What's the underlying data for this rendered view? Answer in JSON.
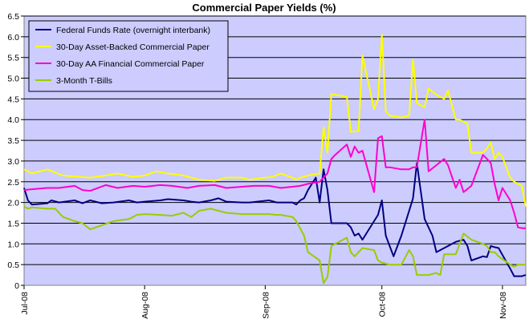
{
  "chart_data": {
    "type": "line",
    "title": "Commercial Paper Yields (%)",
    "xlabel": "",
    "ylabel": "",
    "ylim": [
      0,
      6.5
    ],
    "yticks": [
      "0",
      "0.5",
      "1.0",
      "1.5",
      "2.0",
      "2.5",
      "3.0",
      "3.5",
      "4.0",
      "4.5",
      "5.0",
      "5.5",
      "6.0",
      "6.5"
    ],
    "x_range": [
      "2008-07-01",
      "2008-11-07"
    ],
    "xticks": [
      {
        "label": "Jul-08",
        "date": "2008-07-01"
      },
      {
        "label": "Aug-08",
        "date": "2008-08-01"
      },
      {
        "label": "Sep-08",
        "date": "2008-09-01"
      },
      {
        "label": "Oct-08",
        "date": "2008-10-01"
      },
      {
        "label": "Nov-08",
        "date": "2008-11-01"
      }
    ],
    "grid": "horizontal",
    "legend_position": "top-left",
    "plot_background": "#ccccff",
    "series": [
      {
        "name": "Federal Funds Rate (overnight interbank)",
        "color": "#000080",
        "points": [
          [
            "2008-07-01",
            2.35
          ],
          [
            "2008-07-02",
            2.05
          ],
          [
            "2008-07-03",
            1.95
          ],
          [
            "2008-07-07",
            1.98
          ],
          [
            "2008-07-08",
            2.05
          ],
          [
            "2008-07-10",
            2.0
          ],
          [
            "2008-07-14",
            2.05
          ],
          [
            "2008-07-16",
            1.98
          ],
          [
            "2008-07-18",
            2.05
          ],
          [
            "2008-07-21",
            1.98
          ],
          [
            "2008-07-24",
            2.0
          ],
          [
            "2008-07-28",
            2.05
          ],
          [
            "2008-07-30",
            2.0
          ],
          [
            "2008-08-01",
            2.02
          ],
          [
            "2008-08-05",
            2.05
          ],
          [
            "2008-08-07",
            2.08
          ],
          [
            "2008-08-11",
            2.05
          ],
          [
            "2008-08-13",
            2.02
          ],
          [
            "2008-08-15",
            2.0
          ],
          [
            "2008-08-18",
            2.05
          ],
          [
            "2008-08-20",
            2.1
          ],
          [
            "2008-08-22",
            2.02
          ],
          [
            "2008-08-26",
            2.0
          ],
          [
            "2008-08-28",
            2.0
          ],
          [
            "2008-09-02",
            2.05
          ],
          [
            "2008-09-04",
            2.0
          ],
          [
            "2008-09-05",
            2.0
          ],
          [
            "2008-09-08",
            2.0
          ],
          [
            "2008-09-09",
            1.95
          ],
          [
            "2008-09-10",
            2.05
          ],
          [
            "2008-09-11",
            2.1
          ],
          [
            "2008-09-12",
            2.3
          ],
          [
            "2008-09-14",
            2.6
          ],
          [
            "2008-09-15",
            2.0
          ],
          [
            "2008-09-16",
            2.8
          ],
          [
            "2008-09-17",
            2.3
          ],
          [
            "2008-09-18",
            1.5
          ],
          [
            "2008-09-19",
            1.5
          ],
          [
            "2008-09-22",
            1.5
          ],
          [
            "2008-09-23",
            1.4
          ],
          [
            "2008-09-24",
            1.2
          ],
          [
            "2008-09-25",
            1.25
          ],
          [
            "2008-09-26",
            1.1
          ],
          [
            "2008-09-28",
            1.4
          ],
          [
            "2008-09-30",
            1.7
          ],
          [
            "2008-10-01",
            2.05
          ],
          [
            "2008-10-02",
            1.2
          ],
          [
            "2008-10-03",
            0.95
          ],
          [
            "2008-10-04",
            0.7
          ],
          [
            "2008-10-06",
            1.2
          ],
          [
            "2008-10-08",
            1.8
          ],
          [
            "2008-10-09",
            2.1
          ],
          [
            "2008-10-10",
            2.95
          ],
          [
            "2008-10-12",
            1.6
          ],
          [
            "2008-10-14",
            1.2
          ],
          [
            "2008-10-15",
            0.8
          ],
          [
            "2008-10-17",
            0.9
          ],
          [
            "2008-10-20",
            1.05
          ],
          [
            "2008-10-22",
            1.1
          ],
          [
            "2008-10-23",
            0.95
          ],
          [
            "2008-10-24",
            0.6
          ],
          [
            "2008-10-27",
            0.7
          ],
          [
            "2008-10-28",
            0.68
          ],
          [
            "2008-10-29",
            0.95
          ],
          [
            "2008-10-30",
            0.92
          ],
          [
            "2008-10-31",
            0.9
          ],
          [
            "2008-11-03",
            0.4
          ],
          [
            "2008-11-04",
            0.22
          ],
          [
            "2008-11-06",
            0.22
          ],
          [
            "2008-11-07",
            0.25
          ]
        ]
      },
      {
        "name": "30-Day Asset-Backed Commercial Paper",
        "color": "#ffff00",
        "points": [
          [
            "2008-07-01",
            2.8
          ],
          [
            "2008-07-02",
            2.75
          ],
          [
            "2008-07-03",
            2.7
          ],
          [
            "2008-07-07",
            2.8
          ],
          [
            "2008-07-09",
            2.72
          ],
          [
            "2008-07-11",
            2.65
          ],
          [
            "2008-07-15",
            2.62
          ],
          [
            "2008-07-18",
            2.6
          ],
          [
            "2008-07-22",
            2.65
          ],
          [
            "2008-07-25",
            2.7
          ],
          [
            "2008-07-29",
            2.62
          ],
          [
            "2008-08-01",
            2.65
          ],
          [
            "2008-08-04",
            2.75
          ],
          [
            "2008-08-07",
            2.7
          ],
          [
            "2008-08-11",
            2.65
          ],
          [
            "2008-08-13",
            2.6
          ],
          [
            "2008-08-15",
            2.55
          ],
          [
            "2008-08-19",
            2.52
          ],
          [
            "2008-08-22",
            2.6
          ],
          [
            "2008-08-26",
            2.6
          ],
          [
            "2008-08-28",
            2.55
          ],
          [
            "2008-09-01",
            2.6
          ],
          [
            "2008-09-03",
            2.62
          ],
          [
            "2008-09-05",
            2.7
          ],
          [
            "2008-09-08",
            2.6
          ],
          [
            "2008-09-09",
            2.55
          ],
          [
            "2008-09-10",
            2.6
          ],
          [
            "2008-09-12",
            2.65
          ],
          [
            "2008-09-15",
            2.7
          ],
          [
            "2008-09-16",
            3.82
          ],
          [
            "2008-09-17",
            3.2
          ],
          [
            "2008-09-18",
            4.62
          ],
          [
            "2008-09-19",
            4.6
          ],
          [
            "2008-09-22",
            4.55
          ],
          [
            "2008-09-23",
            3.7
          ],
          [
            "2008-09-24",
            3.72
          ],
          [
            "2008-09-25",
            3.72
          ],
          [
            "2008-09-26",
            5.55
          ],
          [
            "2008-09-29",
            4.25
          ],
          [
            "2008-09-30",
            4.5
          ],
          [
            "2008-10-01",
            6.05
          ],
          [
            "2008-10-02",
            4.2
          ],
          [
            "2008-10-03",
            4.1
          ],
          [
            "2008-10-06",
            4.05
          ],
          [
            "2008-10-08",
            4.1
          ],
          [
            "2008-10-09",
            5.45
          ],
          [
            "2008-10-10",
            4.4
          ],
          [
            "2008-10-12",
            4.3
          ],
          [
            "2008-10-13",
            4.75
          ],
          [
            "2008-10-15",
            4.6
          ],
          [
            "2008-10-17",
            4.5
          ],
          [
            "2008-10-18",
            4.7
          ],
          [
            "2008-10-20",
            4.0
          ],
          [
            "2008-10-21",
            4.0
          ],
          [
            "2008-10-23",
            3.9
          ],
          [
            "2008-10-24",
            3.2
          ],
          [
            "2008-10-27",
            3.2
          ],
          [
            "2008-10-28",
            3.3
          ],
          [
            "2008-10-29",
            3.45
          ],
          [
            "2008-10-30",
            3.05
          ],
          [
            "2008-10-31",
            3.2
          ],
          [
            "2008-11-01",
            3.1
          ],
          [
            "2008-11-03",
            2.6
          ],
          [
            "2008-11-04",
            2.5
          ],
          [
            "2008-11-05",
            2.45
          ],
          [
            "2008-11-06",
            2.4
          ],
          [
            "2008-11-07",
            1.9
          ]
        ]
      },
      {
        "name": "30-Day AA Financial Commercial Paper",
        "color": "#ff00cc",
        "points": [
          [
            "2008-07-01",
            2.3
          ],
          [
            "2008-07-03",
            2.32
          ],
          [
            "2008-07-07",
            2.35
          ],
          [
            "2008-07-10",
            2.35
          ],
          [
            "2008-07-14",
            2.4
          ],
          [
            "2008-07-16",
            2.3
          ],
          [
            "2008-07-18",
            2.28
          ],
          [
            "2008-07-22",
            2.42
          ],
          [
            "2008-07-25",
            2.35
          ],
          [
            "2008-07-29",
            2.4
          ],
          [
            "2008-08-01",
            2.38
          ],
          [
            "2008-08-05",
            2.42
          ],
          [
            "2008-08-08",
            2.4
          ],
          [
            "2008-08-12",
            2.35
          ],
          [
            "2008-08-15",
            2.4
          ],
          [
            "2008-08-19",
            2.42
          ],
          [
            "2008-08-22",
            2.35
          ],
          [
            "2008-08-26",
            2.38
          ],
          [
            "2008-08-29",
            2.4
          ],
          [
            "2008-09-02",
            2.4
          ],
          [
            "2008-09-05",
            2.35
          ],
          [
            "2008-09-08",
            2.38
          ],
          [
            "2008-09-10",
            2.4
          ],
          [
            "2008-09-12",
            2.45
          ],
          [
            "2008-09-15",
            2.5
          ],
          [
            "2008-09-16",
            2.6
          ],
          [
            "2008-09-17",
            2.7
          ],
          [
            "2008-09-18",
            3.05
          ],
          [
            "2008-09-19",
            3.15
          ],
          [
            "2008-09-22",
            3.4
          ],
          [
            "2008-09-23",
            3.1
          ],
          [
            "2008-09-24",
            3.35
          ],
          [
            "2008-09-25",
            3.2
          ],
          [
            "2008-09-26",
            3.25
          ],
          [
            "2008-09-29",
            2.25
          ],
          [
            "2008-09-30",
            3.55
          ],
          [
            "2008-10-01",
            3.6
          ],
          [
            "2008-10-02",
            2.85
          ],
          [
            "2008-10-03",
            2.85
          ],
          [
            "2008-10-06",
            2.8
          ],
          [
            "2008-10-08",
            2.8
          ],
          [
            "2008-10-09",
            2.85
          ],
          [
            "2008-10-10",
            2.85
          ],
          [
            "2008-10-12",
            4.0
          ],
          [
            "2008-10-13",
            2.75
          ],
          [
            "2008-10-15",
            2.9
          ],
          [
            "2008-10-17",
            3.05
          ],
          [
            "2008-10-18",
            2.9
          ],
          [
            "2008-10-20",
            2.35
          ],
          [
            "2008-10-21",
            2.55
          ],
          [
            "2008-10-22",
            2.25
          ],
          [
            "2008-10-24",
            2.4
          ],
          [
            "2008-10-27",
            3.15
          ],
          [
            "2008-10-28",
            3.05
          ],
          [
            "2008-10-29",
            2.95
          ],
          [
            "2008-10-30",
            2.45
          ],
          [
            "2008-10-31",
            2.05
          ],
          [
            "2008-11-01",
            2.35
          ],
          [
            "2008-11-03",
            2.05
          ],
          [
            "2008-11-04",
            1.75
          ],
          [
            "2008-11-05",
            1.4
          ],
          [
            "2008-11-06",
            1.38
          ],
          [
            "2008-11-07",
            1.38
          ]
        ]
      },
      {
        "name": "3-Month T-Bills",
        "color": "#99cc00",
        "points": [
          [
            "2008-07-01",
            1.9
          ],
          [
            "2008-07-02",
            1.85
          ],
          [
            "2008-07-03",
            1.88
          ],
          [
            "2008-07-07",
            1.85
          ],
          [
            "2008-07-09",
            1.85
          ],
          [
            "2008-07-11",
            1.65
          ],
          [
            "2008-07-14",
            1.55
          ],
          [
            "2008-07-16",
            1.5
          ],
          [
            "2008-07-18",
            1.35
          ],
          [
            "2008-07-21",
            1.45
          ],
          [
            "2008-07-24",
            1.55
          ],
          [
            "2008-07-28",
            1.6
          ],
          [
            "2008-07-30",
            1.7
          ],
          [
            "2008-08-01",
            1.72
          ],
          [
            "2008-08-05",
            1.7
          ],
          [
            "2008-08-08",
            1.68
          ],
          [
            "2008-08-11",
            1.75
          ],
          [
            "2008-08-13",
            1.65
          ],
          [
            "2008-08-15",
            1.8
          ],
          [
            "2008-08-18",
            1.85
          ],
          [
            "2008-08-20",
            1.8
          ],
          [
            "2008-08-22",
            1.75
          ],
          [
            "2008-08-26",
            1.72
          ],
          [
            "2008-08-29",
            1.72
          ],
          [
            "2008-09-02",
            1.72
          ],
          [
            "2008-09-04",
            1.7
          ],
          [
            "2008-09-05",
            1.7
          ],
          [
            "2008-09-08",
            1.65
          ],
          [
            "2008-09-09",
            1.55
          ],
          [
            "2008-09-11",
            1.2
          ],
          [
            "2008-09-12",
            0.8
          ],
          [
            "2008-09-15",
            0.6
          ],
          [
            "2008-09-16",
            0.05
          ],
          [
            "2008-09-17",
            0.2
          ],
          [
            "2008-09-18",
            0.95
          ],
          [
            "2008-09-19",
            1.0
          ],
          [
            "2008-09-22",
            1.15
          ],
          [
            "2008-09-23",
            0.8
          ],
          [
            "2008-09-24",
            0.7
          ],
          [
            "2008-09-25",
            0.8
          ],
          [
            "2008-09-26",
            0.9
          ],
          [
            "2008-09-29",
            0.85
          ],
          [
            "2008-09-30",
            0.6
          ],
          [
            "2008-10-01",
            0.55
          ],
          [
            "2008-10-03",
            0.5
          ],
          [
            "2008-10-06",
            0.5
          ],
          [
            "2008-10-08",
            0.85
          ],
          [
            "2008-10-09",
            0.7
          ],
          [
            "2008-10-10",
            0.25
          ],
          [
            "2008-10-13",
            0.25
          ],
          [
            "2008-10-15",
            0.3
          ],
          [
            "2008-10-16",
            0.25
          ],
          [
            "2008-10-17",
            0.75
          ],
          [
            "2008-10-20",
            0.75
          ],
          [
            "2008-10-21",
            1.0
          ],
          [
            "2008-10-22",
            1.25
          ],
          [
            "2008-10-24",
            1.1
          ],
          [
            "2008-10-27",
            1.0
          ],
          [
            "2008-10-28",
            0.95
          ],
          [
            "2008-10-29",
            0.8
          ],
          [
            "2008-10-30",
            0.8
          ],
          [
            "2008-10-31",
            0.7
          ],
          [
            "2008-11-03",
            0.5
          ],
          [
            "2008-11-04",
            0.45
          ],
          [
            "2008-11-05",
            0.5
          ],
          [
            "2008-11-06",
            0.5
          ],
          [
            "2008-11-07",
            0.5
          ]
        ]
      }
    ]
  }
}
